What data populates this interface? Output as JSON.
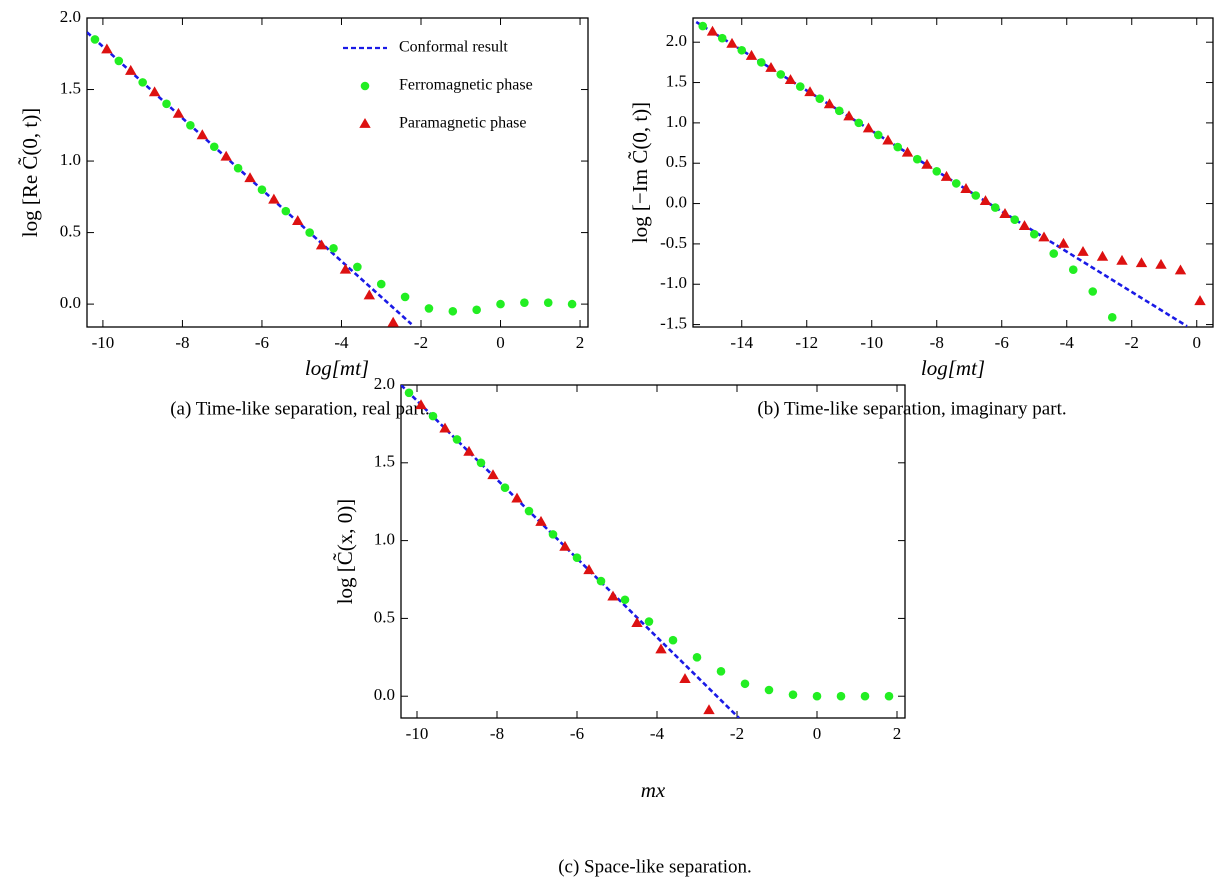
{
  "chart_data": [
    {
      "type": "scatter",
      "xlabel": "log[mt]",
      "ylabel": "log [Re C̃(0, t)]",
      "caption": "(a) Time-like separation, real part.",
      "xlim": [
        -10.4,
        2.2
      ],
      "ylim": [
        -0.16,
        2.0
      ],
      "xticks": [
        -10,
        -8,
        -6,
        -4,
        -2,
        0,
        2
      ],
      "yticks": [
        {
          "value": 0,
          "label": "0.0"
        },
        0.5,
        {
          "value": 1,
          "label": "1.0"
        },
        1.5,
        {
          "value": 2,
          "label": "2.0"
        }
      ],
      "legend": "upper right",
      "series": [
        {
          "name": "Conformal result",
          "type": "line",
          "color": "#1a1ae6",
          "x": [
            -10.4,
            -2.24
          ],
          "values": [
            1.9,
            -0.14
          ]
        },
        {
          "name": "Ferromagnetic phase",
          "type": "scatter",
          "marker": "circle",
          "color": "#22ee22",
          "x": [
            -10.2,
            -9.6,
            -9.0,
            -8.4,
            -7.8,
            -7.2,
            -6.6,
            -6.0,
            -5.4,
            -4.8,
            -4.2,
            -3.6,
            -3.0,
            -2.4,
            -1.8,
            -1.2,
            -0.6,
            0,
            0.6,
            1.2,
            1.8
          ],
          "values": [
            1.85,
            1.7,
            1.55,
            1.4,
            1.25,
            1.1,
            0.95,
            0.8,
            0.65,
            0.5,
            0.39,
            0.26,
            0.14,
            0.05,
            -0.03,
            -0.05,
            -0.04,
            0.0,
            0.01,
            0.01,
            0.0
          ]
        },
        {
          "name": "Paramagnetic phase",
          "type": "scatter",
          "marker": "triangle",
          "color": "#dd1111",
          "x": [
            -9.9,
            -9.3,
            -8.7,
            -8.1,
            -7.5,
            -6.9,
            -6.3,
            -5.7,
            -5.1,
            -4.5,
            -3.9,
            -3.3,
            -2.7
          ],
          "values": [
            1.78,
            1.63,
            1.48,
            1.33,
            1.18,
            1.03,
            0.88,
            0.73,
            0.58,
            0.41,
            0.24,
            0.06,
            -0.13
          ]
        }
      ]
    },
    {
      "type": "scatter",
      "xlabel": "log[mt]",
      "ylabel": "log [−Im C̃(0, t)]",
      "caption": "(b) Time-like separation, imaginary part.",
      "xlim": [
        -15.5,
        0.5
      ],
      "ylim": [
        -1.53,
        2.3
      ],
      "xticks": [
        -14,
        -12,
        -10,
        -8,
        -6,
        -4,
        -2,
        0
      ],
      "yticks": [
        -1.5,
        {
          "value": -1,
          "label": "-1.0"
        },
        -0.5,
        {
          "value": 0,
          "label": "0.0"
        },
        0.5,
        {
          "value": 1,
          "label": "1.0"
        },
        1.5,
        {
          "value": 2,
          "label": "2.0"
        }
      ],
      "series": [
        {
          "type": "line",
          "color": "#1a1ae6",
          "x": [
            -15.4,
            -0.3
          ],
          "values": [
            2.25,
            -1.52
          ]
        },
        {
          "type": "scatter",
          "marker": "circle",
          "color": "#22ee22",
          "x": [
            -15.2,
            -14.6,
            -14.0,
            -13.4,
            -12.8,
            -12.2,
            -11.6,
            -11.0,
            -10.4,
            -9.8,
            -9.2,
            -8.6,
            -8.0,
            -7.4,
            -6.8,
            -6.2,
            -5.6,
            -5.0,
            -4.4,
            -3.8,
            -3.2,
            -2.6
          ],
          "values": [
            2.2,
            2.05,
            1.9,
            1.75,
            1.6,
            1.45,
            1.3,
            1.15,
            1.0,
            0.85,
            0.7,
            0.55,
            0.4,
            0.25,
            0.1,
            -0.05,
            -0.2,
            -0.38,
            -0.62,
            -0.82,
            -1.09,
            -1.41
          ]
        },
        {
          "type": "scatter",
          "marker": "triangle",
          "color": "#dd1111",
          "x": [
            -14.9,
            -14.3,
            -13.7,
            -13.1,
            -12.5,
            -11.9,
            -11.3,
            -10.7,
            -10.1,
            -9.5,
            -8.9,
            -8.3,
            -7.7,
            -7.1,
            -6.5,
            -5.9,
            -5.3,
            -4.7,
            -4.1,
            -3.5,
            -2.9,
            -2.3,
            -1.7,
            -1.1,
            -0.5,
            0.1
          ],
          "values": [
            2.13,
            1.98,
            1.83,
            1.68,
            1.53,
            1.38,
            1.23,
            1.08,
            0.93,
            0.78,
            0.63,
            0.48,
            0.33,
            0.18,
            0.03,
            -0.13,
            -0.28,
            -0.42,
            -0.5,
            -0.6,
            -0.66,
            -0.71,
            -0.74,
            -0.76,
            -0.83,
            -1.21
          ]
        }
      ]
    },
    {
      "type": "scatter",
      "xlabel": "mx",
      "ylabel": "log [C̃(x, 0)]",
      "caption": "(c) Space-like separation.",
      "xlim": [
        -10.4,
        2.2
      ],
      "ylim": [
        -0.14,
        2.0
      ],
      "xticks": [
        -10,
        -8,
        -6,
        -4,
        -2,
        0,
        2
      ],
      "yticks": [
        {
          "value": 0,
          "label": "0.0"
        },
        0.5,
        {
          "value": 1,
          "label": "1.0"
        },
        1.5,
        {
          "value": 2,
          "label": "2.0"
        }
      ],
      "series": [
        {
          "type": "line",
          "color": "#1a1ae6",
          "x": [
            -10.4,
            -1.95
          ],
          "values": [
            2.0,
            -0.14
          ]
        },
        {
          "type": "scatter",
          "marker": "circle",
          "color": "#22ee22",
          "x": [
            -10.2,
            -9.6,
            -9.0,
            -8.4,
            -7.8,
            -7.2,
            -6.6,
            -6.0,
            -5.4,
            -4.8,
            -4.2,
            -3.6,
            -3.0,
            -2.4,
            -1.8,
            -1.2,
            -0.6,
            0,
            0.6,
            1.2,
            1.8
          ],
          "values": [
            1.95,
            1.8,
            1.65,
            1.5,
            1.34,
            1.19,
            1.04,
            0.89,
            0.74,
            0.62,
            0.48,
            0.36,
            0.25,
            0.16,
            0.08,
            0.04,
            0.01,
            0.0,
            0.0,
            0.0,
            0.0
          ]
        },
        {
          "type": "scatter",
          "marker": "triangle",
          "color": "#dd1111",
          "x": [
            -9.9,
            -9.3,
            -8.7,
            -8.1,
            -7.5,
            -6.9,
            -6.3,
            -5.7,
            -5.1,
            -4.5,
            -3.9,
            -3.3,
            -2.7
          ],
          "values": [
            1.87,
            1.72,
            1.57,
            1.42,
            1.27,
            1.12,
            0.96,
            0.81,
            0.64,
            0.47,
            0.3,
            0.11,
            -0.09
          ]
        }
      ]
    }
  ]
}
